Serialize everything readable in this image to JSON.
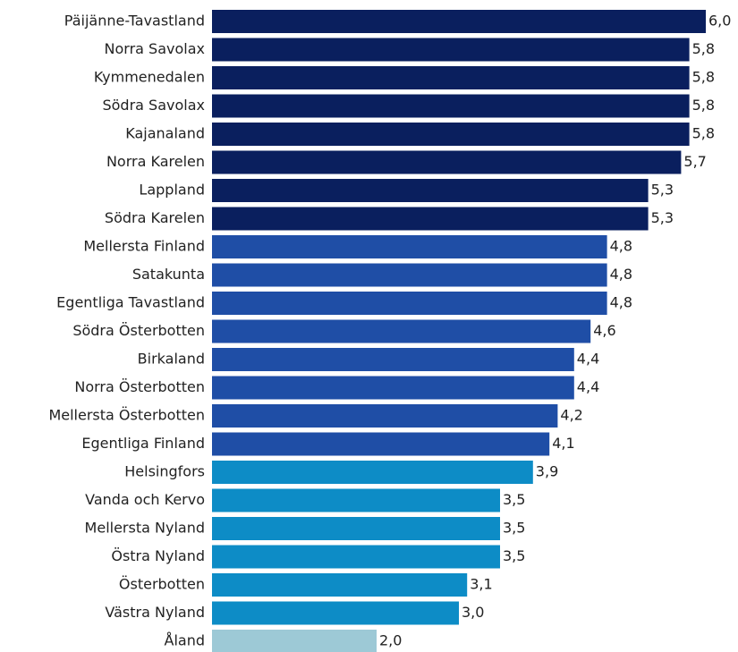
{
  "chart_data": {
    "type": "barh",
    "categories": [
      "Päijänne-Tavastland",
      "Norra Savolax",
      "Kymmenedalen",
      "Södra Savolax",
      "Kajanaland",
      "Norra Karelen",
      "Lappland",
      "Södra Karelen",
      "Mellersta Finland",
      "Satakunta",
      "Egentliga Tavastland",
      "Södra Österbotten",
      "Birkaland",
      "Norra Österbotten",
      "Mellersta Österbotten",
      "Egentliga Finland",
      "Helsingfors",
      "Vanda och Kervo",
      "Mellersta Nyland",
      "Östra Nyland",
      "Österbotten",
      "Västra Nyland",
      "Åland"
    ],
    "values": [
      6.0,
      5.8,
      5.8,
      5.8,
      5.8,
      5.7,
      5.3,
      5.3,
      4.8,
      4.8,
      4.8,
      4.6,
      4.4,
      4.4,
      4.2,
      4.1,
      3.9,
      3.5,
      3.5,
      3.5,
      3.1,
      3.0,
      2.0
    ],
    "value_labels": [
      "6,0",
      "5,8",
      "5,8",
      "5,8",
      "5,8",
      "5,7",
      "5,3",
      "5,3",
      "4,8",
      "4,8",
      "4,8",
      "4,6",
      "4,4",
      "4,4",
      "4,2",
      "4,1",
      "3,9",
      "3,5",
      "3,5",
      "3,5",
      "3,1",
      "3,0",
      "2,0"
    ],
    "colors": [
      "#0a1f5e",
      "#0a1f5e",
      "#0a1f5e",
      "#0a1f5e",
      "#0a1f5e",
      "#0a1f5e",
      "#0a1f5e",
      "#0a1f5e",
      "#1f4ea6",
      "#1f4ea6",
      "#1f4ea6",
      "#1f4ea6",
      "#1f4ea6",
      "#1f4ea6",
      "#1f4ea6",
      "#1f4ea6",
      "#0d8cc6",
      "#0d8cc6",
      "#0d8cc6",
      "#0d8cc6",
      "#0d8cc6",
      "#0d8cc6",
      "#9dc9d6"
    ]
  }
}
